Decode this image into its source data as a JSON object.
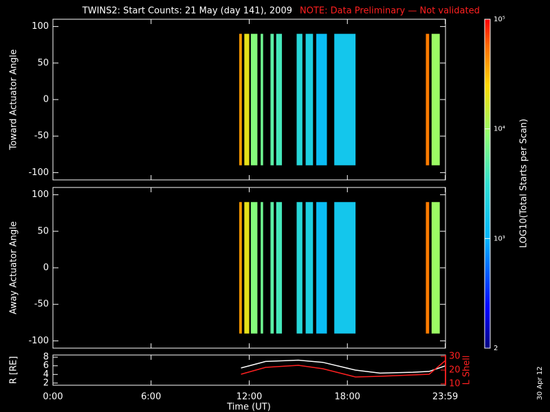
{
  "chart_data": [
    {
      "type": "heatmap",
      "title": "TWINS2: Start Counts: 21 May (day 141), 2009",
      "note": "NOTE: Data Preliminary — Not validated",
      "ylabel": "Toward Actuator Angle",
      "xlim": [
        0,
        24
      ],
      "xticks": [
        0,
        6,
        12,
        18,
        23.983
      ],
      "ylim": [
        -110,
        110
      ],
      "yticks": [
        100,
        50,
        0,
        -50,
        -100
      ],
      "angle_range": [
        -90,
        90
      ],
      "clim": [
        2,
        5
      ],
      "cticks": [
        {
          "value": 5,
          "label": "10⁵"
        },
        {
          "value": 4,
          "label": "10⁴"
        },
        {
          "value": 3,
          "label": "10³"
        },
        2
      ],
      "colorbar_label": "LOG10(Total Starts per Scan)",
      "stripes": [
        {
          "start": 11.39,
          "end": 11.55,
          "value": 4.6
        },
        {
          "start": 11.7,
          "end": 12.0,
          "value": 4.3
        },
        {
          "start": 12.1,
          "end": 12.5,
          "value": 3.9
        },
        {
          "start": 12.7,
          "end": 12.85,
          "value": 3.8
        },
        {
          "start": 13.3,
          "end": 13.5,
          "value": 3.7
        },
        {
          "start": 13.65,
          "end": 14.0,
          "value": 3.6
        },
        {
          "start": 14.9,
          "end": 15.25,
          "value": 3.4
        },
        {
          "start": 15.45,
          "end": 15.9,
          "value": 3.3
        },
        {
          "start": 16.1,
          "end": 16.75,
          "value": 3.1
        },
        {
          "start": 17.2,
          "end": 18.5,
          "value": 3.2
        },
        {
          "start": 22.8,
          "end": 23.0,
          "value": 4.7
        },
        {
          "start": 23.15,
          "end": 23.65,
          "value": 4.0
        }
      ]
    },
    {
      "type": "heatmap",
      "ylabel": "Away Actuator Angle",
      "xlim": [
        0,
        24
      ],
      "xticks": [
        0,
        6,
        12,
        18,
        23.983
      ],
      "ylim": [
        -110,
        110
      ],
      "yticks": [
        100,
        50,
        0,
        -50,
        -100
      ],
      "angle_range": [
        -90,
        90
      ],
      "stripes": [
        {
          "start": 11.39,
          "end": 11.55,
          "value": 4.6
        },
        {
          "start": 11.7,
          "end": 12.0,
          "value": 4.3
        },
        {
          "start": 12.1,
          "end": 12.5,
          "value": 3.9
        },
        {
          "start": 12.7,
          "end": 12.85,
          "value": 3.8
        },
        {
          "start": 13.3,
          "end": 13.5,
          "value": 3.7
        },
        {
          "start": 13.65,
          "end": 14.0,
          "value": 3.6
        },
        {
          "start": 14.9,
          "end": 15.25,
          "value": 3.4
        },
        {
          "start": 15.45,
          "end": 15.9,
          "value": 3.3
        },
        {
          "start": 16.1,
          "end": 16.75,
          "value": 3.1
        },
        {
          "start": 17.2,
          "end": 18.5,
          "value": 3.2
        },
        {
          "start": 22.8,
          "end": 23.0,
          "value": 4.7
        },
        {
          "start": 23.15,
          "end": 23.65,
          "value": 4.0
        }
      ]
    },
    {
      "type": "line",
      "ylabel": "R [RE]",
      "y2label": "L Shell",
      "xlabel": "Time (UT)",
      "date_stamp": "30 Apr 12",
      "xlim": [
        0,
        24
      ],
      "xticks": [
        {
          "value": 0,
          "label": "0:00"
        },
        {
          "value": 6,
          "label": "6:00"
        },
        {
          "value": 12,
          "label": "12:00"
        },
        {
          "value": 18,
          "label": "18:00"
        },
        {
          "value": 23.983,
          "label": "23:59"
        }
      ],
      "ylim": [
        1.5,
        8.5
      ],
      "yticks": [
        2,
        4,
        6,
        8
      ],
      "y2lim": [
        9,
        31
      ],
      "y2ticks": [
        10,
        20,
        30
      ],
      "x": [
        11.5,
        13,
        15,
        16.5,
        18.5,
        20,
        22,
        23,
        24
      ],
      "series": [
        {
          "name": "R",
          "color": "#ffffff",
          "values": [
            5.5,
            7.0,
            7.3,
            6.8,
            5.0,
            4.3,
            4.5,
            4.7,
            6.0
          ]
        },
        {
          "name": "L",
          "color": "#ff2020",
          "axis": "y2",
          "values": [
            17,
            22,
            23.5,
            21,
            15,
            15.5,
            16.5,
            17,
            27
          ]
        }
      ]
    }
  ]
}
